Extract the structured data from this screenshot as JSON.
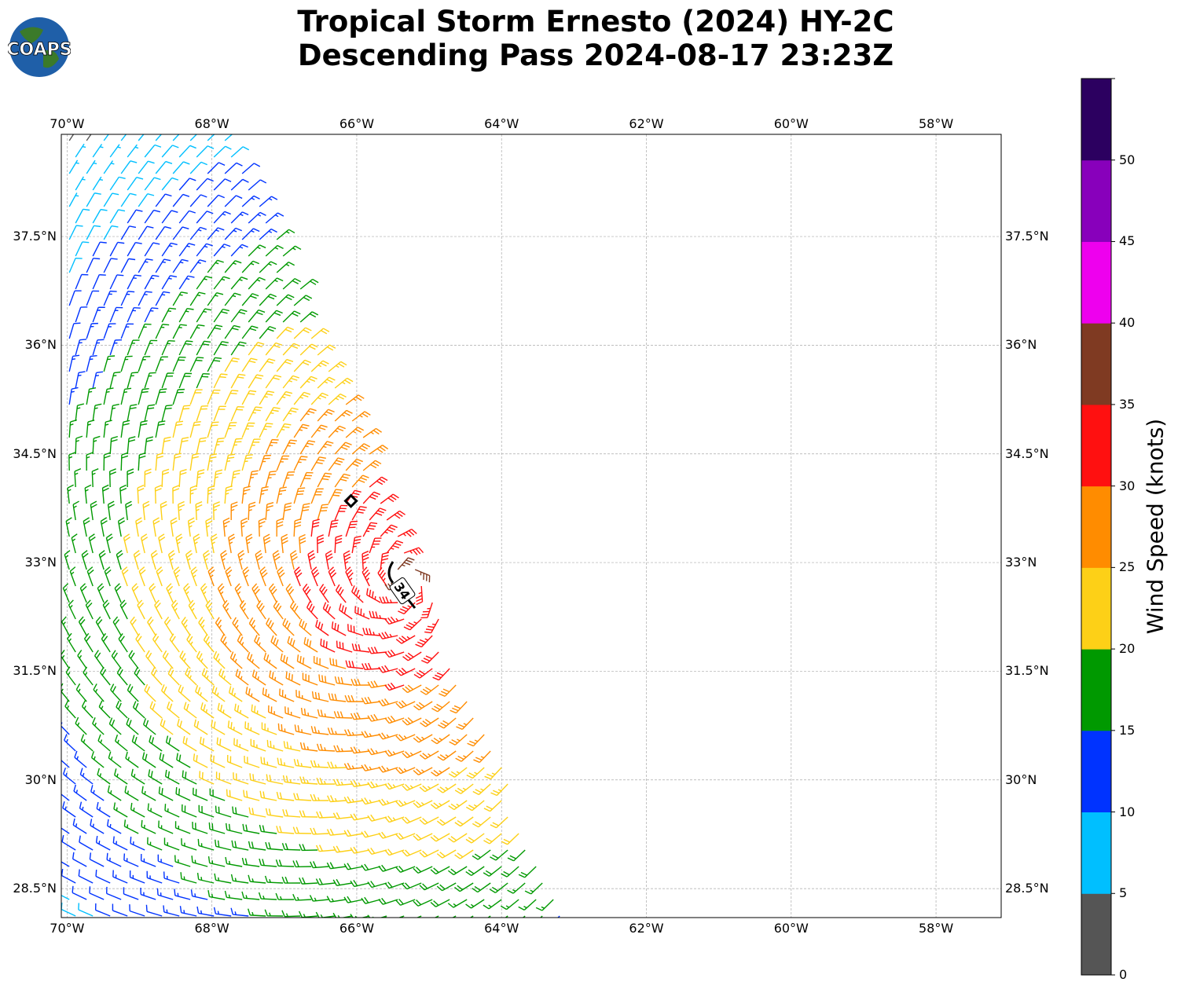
{
  "title_line1": "Tropical Storm Ernesto (2024) HY-2C",
  "title_line2": "Descending Pass 2024-08-17 23:23Z",
  "logo_text": "COAPS",
  "chart_data": {
    "type": "wind-barb-map",
    "lon_ticks": [
      {
        "v": -70,
        "l": "70°W"
      },
      {
        "v": -68,
        "l": "68°W"
      },
      {
        "v": -66,
        "l": "66°W"
      },
      {
        "v": -64,
        "l": "64°W"
      },
      {
        "v": -62,
        "l": "62°W"
      },
      {
        "v": -60,
        "l": "60°W"
      },
      {
        "v": -58,
        "l": "58°W"
      }
    ],
    "lat_ticks": [
      {
        "v": 37.5,
        "l": "37.5°N"
      },
      {
        "v": 36,
        "l": "36°N"
      },
      {
        "v": 34.5,
        "l": "34.5°N"
      },
      {
        "v": 33,
        "l": "33°N"
      },
      {
        "v": 31.5,
        "l": "31.5°N"
      },
      {
        "v": 30,
        "l": "30°N"
      },
      {
        "v": 28.5,
        "l": "28.5°N"
      }
    ],
    "lon_range": [
      -70.08,
      -57.1
    ],
    "lat_range": [
      28.1,
      38.91
    ],
    "grid": true,
    "storm_center": {
      "lon": -65.34,
      "lat": 32.74,
      "max_wind_kt": 36
    },
    "storm_marker": {
      "lon": -66.08,
      "lat": 33.85
    },
    "contour_label": "34",
    "swath_east_edge": [
      [
        -67.67,
        38.87
      ],
      [
        -63.17,
        28.29
      ]
    ],
    "colorbar": {
      "label": "Wind Speed (knots)",
      "bounds": [
        0,
        5,
        10,
        15,
        20,
        25,
        30,
        35,
        40,
        45,
        50,
        55
      ],
      "tick_labels": [
        "0",
        "5",
        "10",
        "15",
        "20",
        "25",
        "30",
        "35",
        "40",
        "45",
        "50"
      ],
      "colors": [
        "#555555",
        "#00bfff",
        "#0033ff",
        "#009900",
        "#fdd017",
        "#ff8c00",
        "#ff1010",
        "#7f3a22",
        "#ee00ee",
        "#8800bb",
        "#2c0060"
      ]
    }
  }
}
